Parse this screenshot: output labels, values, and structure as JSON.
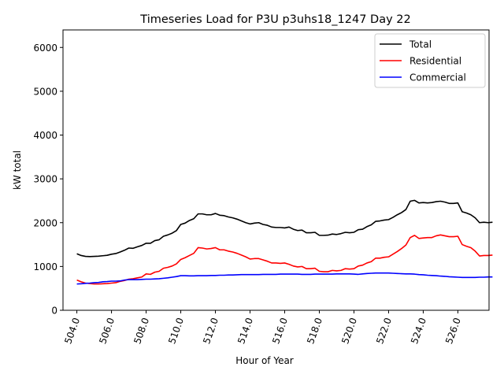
{
  "chart_data": {
    "type": "line",
    "title": "Timeseries Load for P3U p3uhs18_1247  Day 22",
    "xlabel": "Hour of Year",
    "ylabel": "kW total",
    "xlim": [
      503.2,
      527.8
    ],
    "ylim": [
      0,
      6400
    ],
    "xticks": [
      504,
      506,
      508,
      510,
      512,
      514,
      516,
      518,
      520,
      522,
      524,
      526
    ],
    "xtick_labels": [
      "504.0",
      "506.0",
      "508.0",
      "510.0",
      "512.0",
      "514.0",
      "516.0",
      "518.0",
      "520.0",
      "522.0",
      "524.0",
      "526.0"
    ],
    "yticks": [
      0,
      1000,
      2000,
      3000,
      4000,
      5000,
      6000
    ],
    "ytick_labels": [
      "0",
      "1000",
      "2000",
      "3000",
      "4000",
      "5000",
      "6000"
    ],
    "legend_position": "top-right",
    "x_start": 504,
    "x_step": 0.25,
    "series": [
      {
        "name": "Total",
        "color": "#000000",
        "values": [
          1290,
          1250,
          1230,
          1225,
          1230,
          1235,
          1245,
          1255,
          1280,
          1295,
          1330,
          1370,
          1420,
          1415,
          1450,
          1480,
          1530,
          1530,
          1590,
          1610,
          1690,
          1720,
          1760,
          1820,
          1960,
          1990,
          2050,
          2090,
          2200,
          2200,
          2180,
          2180,
          2210,
          2170,
          2160,
          2130,
          2110,
          2080,
          2040,
          2000,
          1970,
          1990,
          2000,
          1960,
          1940,
          1900,
          1890,
          1890,
          1880,
          1900,
          1850,
          1820,
          1830,
          1770,
          1770,
          1780,
          1710,
          1710,
          1715,
          1740,
          1730,
          1750,
          1780,
          1770,
          1780,
          1840,
          1850,
          1910,
          1950,
          2030,
          2040,
          2060,
          2070,
          2120,
          2180,
          2230,
          2300,
          2490,
          2510,
          2450,
          2460,
          2450,
          2460,
          2480,
          2490,
          2470,
          2440,
          2440,
          2450,
          2250,
          2220,
          2180,
          2110,
          2000,
          2010,
          2000,
          2010
        ]
      },
      {
        "name": "Residential",
        "color": "#ff0000",
        "values": [
          690,
          650,
          620,
          610,
          600,
          600,
          605,
          610,
          620,
          630,
          660,
          680,
          710,
          720,
          740,
          760,
          830,
          820,
          870,
          890,
          960,
          980,
          1010,
          1060,
          1160,
          1200,
          1250,
          1300,
          1430,
          1420,
          1400,
          1410,
          1430,
          1380,
          1380,
          1350,
          1330,
          1300,
          1260,
          1220,
          1170,
          1180,
          1180,
          1150,
          1120,
          1080,
          1080,
          1070,
          1080,
          1050,
          1010,
          990,
          1000,
          950,
          950,
          960,
          890,
          880,
          880,
          910,
          900,
          910,
          950,
          940,
          950,
          1010,
          1030,
          1080,
          1110,
          1190,
          1190,
          1210,
          1220,
          1280,
          1340,
          1410,
          1490,
          1660,
          1710,
          1640,
          1650,
          1660,
          1660,
          1700,
          1720,
          1700,
          1680,
          1680,
          1690,
          1500,
          1460,
          1430,
          1350,
          1240,
          1250,
          1250,
          1260
        ]
      },
      {
        "name": "Commercial",
        "color": "#0000ff",
        "values": [
          600,
          605,
          615,
          620,
          630,
          635,
          650,
          655,
          665,
          665,
          670,
          690,
          700,
          700,
          700,
          705,
          710,
          710,
          715,
          720,
          730,
          740,
          755,
          770,
          790,
          790,
          785,
          785,
          790,
          790,
          790,
          795,
          795,
          800,
          800,
          805,
          805,
          810,
          815,
          815,
          815,
          815,
          815,
          820,
          820,
          820,
          820,
          825,
          825,
          825,
          825,
          825,
          820,
          820,
          820,
          825,
          825,
          825,
          825,
          825,
          830,
          830,
          830,
          830,
          825,
          820,
          830,
          840,
          845,
          850,
          850,
          850,
          850,
          845,
          840,
          835,
          830,
          830,
          825,
          815,
          810,
          800,
          795,
          790,
          780,
          775,
          765,
          760,
          755,
          750,
          750,
          750,
          750,
          755,
          755,
          760,
          760
        ]
      }
    ]
  }
}
